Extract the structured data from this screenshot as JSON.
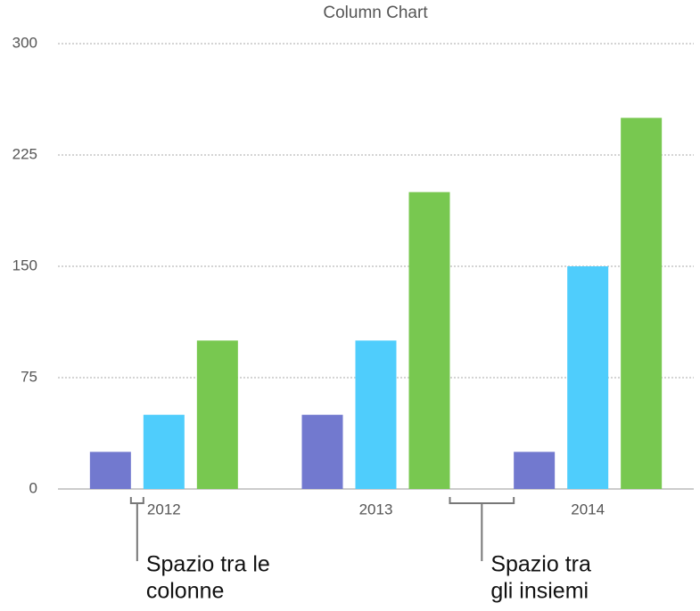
{
  "chart_data": {
    "type": "bar",
    "title": "Column Chart",
    "categories": [
      "2012",
      "2013",
      "2014"
    ],
    "series": [
      {
        "color": "#7279cf",
        "values": [
          25,
          50,
          25
        ]
      },
      {
        "color": "#4fcdfc",
        "values": [
          50,
          100,
          150
        ]
      },
      {
        "color": "#78c850",
        "values": [
          100,
          200,
          250
        ]
      }
    ],
    "ylim": [
      0,
      300
    ],
    "yticks": [
      0,
      75,
      150,
      225,
      300
    ],
    "grid": true,
    "annotations": [
      {
        "lines": [
          "Spazio tra le",
          "colonne"
        ]
      },
      {
        "lines": [
          "Spazio tra",
          "gli insiemi"
        ]
      }
    ]
  }
}
